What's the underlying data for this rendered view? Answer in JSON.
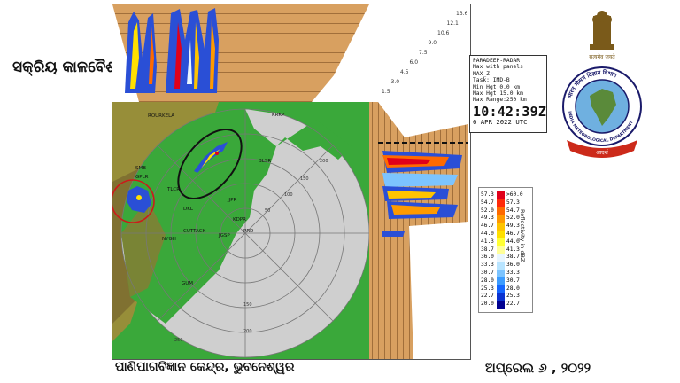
{
  "header": {
    "title": "ସକ୍ରିୟ କାଳବୈଶାଖୀ"
  },
  "footer": {
    "left": "ପାଣିପାଗବିଜ୍ଞାନ କେନ୍ଦ୍ର, ଭୁବନେଶ୍ୱର",
    "right": "ଅପ୍ରେଲ ୬ , ୨୦୨୨"
  },
  "radar_info": {
    "station": "PARADEEP-RADAR",
    "product": "Max with panels",
    "param": "MAX_Z",
    "task": "Task: IMD-B",
    "min_hgt": "Min Hgt:0.0 km",
    "max_hgt": "Max Hgt:15.0 km",
    "max_range": "Max Range:250 km",
    "time": "10:42:39Z",
    "date": "6 APR 2022 UTC"
  },
  "legend": {
    "axis_label": "Reflectivity in dBZ",
    "rows": [
      {
        "left": "57.3",
        "right": ">60.0",
        "color": "#e0001a"
      },
      {
        "left": "54.7",
        "right": "57.3",
        "color": "#ff2a0a"
      },
      {
        "left": "52.0",
        "right": "54.7",
        "color": "#ff6a00"
      },
      {
        "left": "49.3",
        "right": "52.0",
        "color": "#ff9a00"
      },
      {
        "left": "46.7",
        "right": "49.3",
        "color": "#ffc400"
      },
      {
        "left": "44.0",
        "right": "46.7",
        "color": "#ffe000"
      },
      {
        "left": "41.3",
        "right": "44.0",
        "color": "#ffff33"
      },
      {
        "left": "38.7",
        "right": "41.3",
        "color": "#ffff99"
      },
      {
        "left": "36.0",
        "right": "38.7",
        "color": "#e8f6ff"
      },
      {
        "left": "33.3",
        "right": "36.0",
        "color": "#b8e4ff"
      },
      {
        "left": "30.7",
        "right": "33.3",
        "color": "#7cc4ff"
      },
      {
        "left": "28.0",
        "right": "30.7",
        "color": "#3c9cff"
      },
      {
        "left": "25.3",
        "right": "28.0",
        "color": "#1466ff"
      },
      {
        "left": "22.7",
        "right": "25.3",
        "color": "#0a32d0"
      },
      {
        "left": "20.0",
        "right": "22.7",
        "color": "#000090"
      }
    ]
  },
  "height_scale": [
    "13.6",
    "12.1",
    "10.6",
    "9.0",
    "7.5",
    "6.0",
    "4.5",
    "3.0",
    "1.5"
  ],
  "range_labels": [
    "50",
    "100",
    "150",
    "200",
    "250"
  ],
  "places": [
    "ROURKELA",
    "SMB",
    "TLCR",
    "DKL",
    "JJPR",
    "KDPR",
    "PRD",
    "CUTTACK",
    "JGSP",
    "BLSR",
    "NYGH",
    "GPLR",
    "KRKP",
    "GUM"
  ],
  "logo": {
    "emblem_text": "सत्यमेव जयते",
    "ring_text": "भारत मौसम विज्ञान विभाग",
    "ring_text_en": "INDIA METEOROLOGICAL DEPARTMENT",
    "banner": "आदर्श"
  },
  "colors": {
    "land": "#2ea82e",
    "sea_disc": "#c8c8c8",
    "panel": "#d49a55",
    "circle_black": "#111111",
    "circle_red": "#cc1a1a"
  }
}
